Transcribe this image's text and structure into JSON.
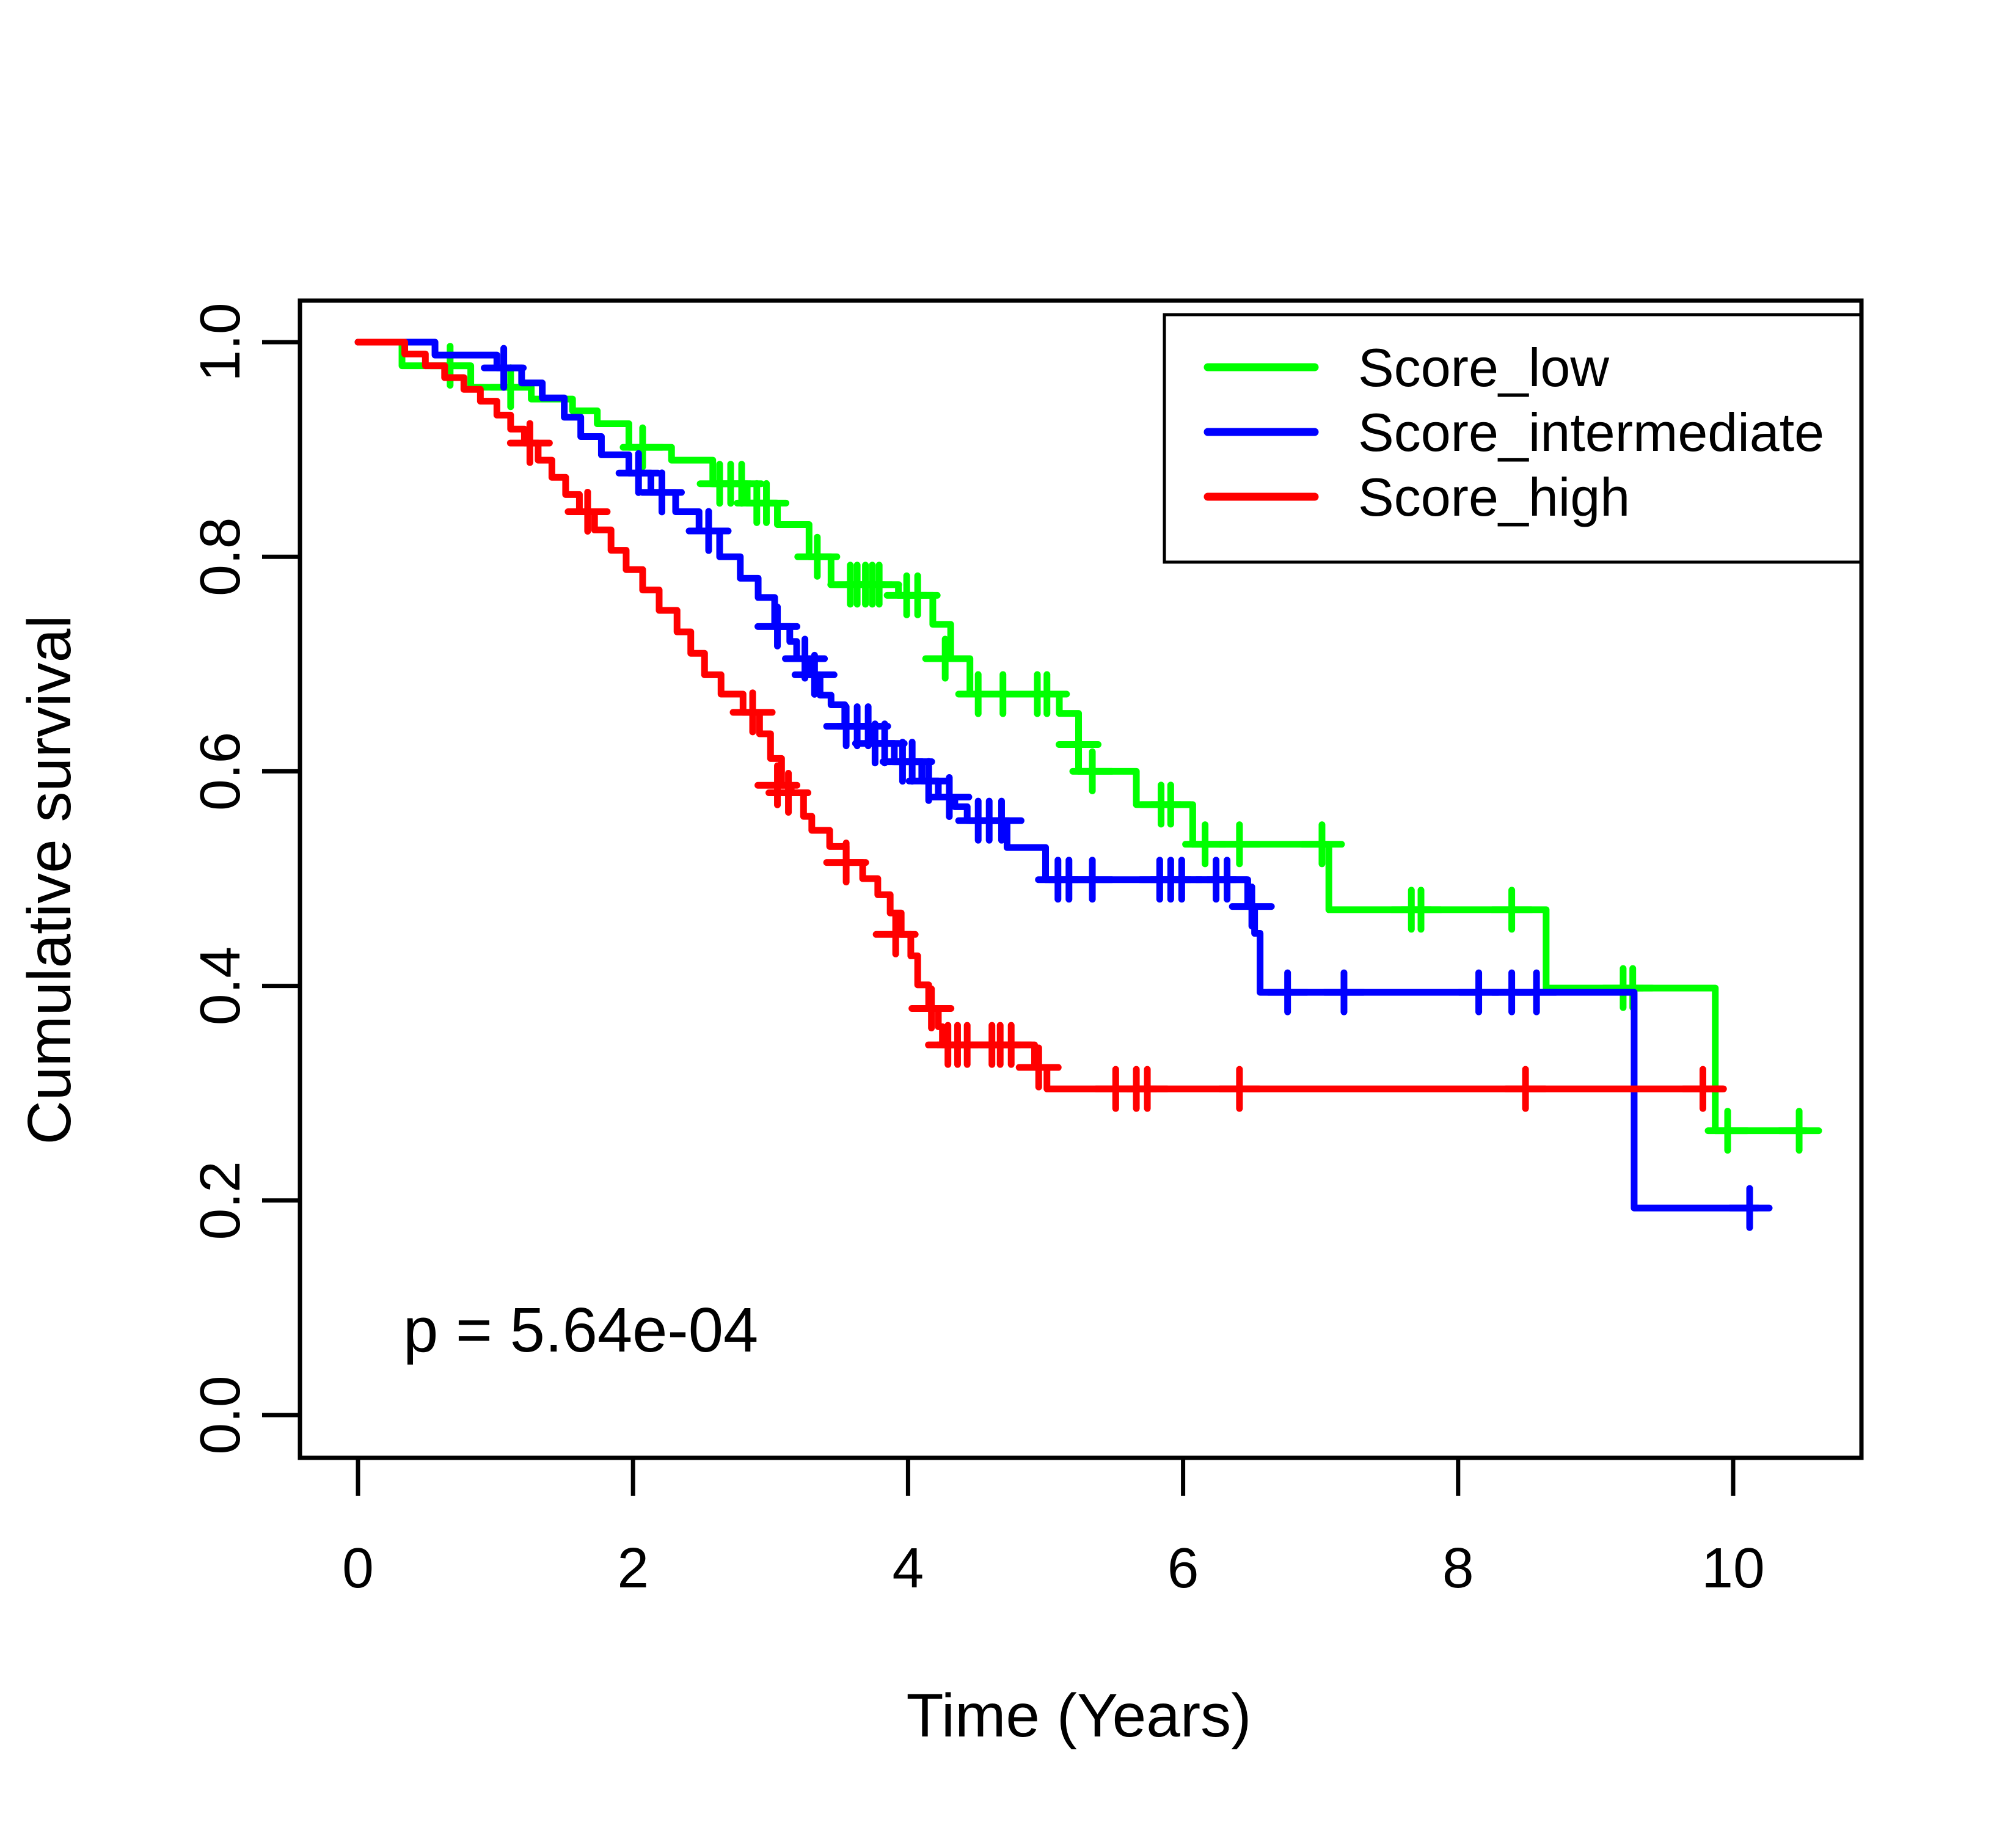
{
  "chart_data": {
    "type": "line",
    "subtype": "kaplan-meier-step-survival",
    "title": "",
    "xlabel": "Time (Years)",
    "ylabel": "Cumulative survival",
    "xlim": [
      -0.4,
      10.9
    ],
    "ylim": [
      -0.03,
      1.04
    ],
    "grid": false,
    "background_color": "#FFFFFF",
    "axis_color": "#000000",
    "x_axis": {
      "ticks": [
        0,
        2,
        4,
        6,
        8,
        10
      ],
      "tick_labels": [
        "0",
        "2",
        "4",
        "6",
        "8",
        "10"
      ]
    },
    "y_axis": {
      "ticks": [
        0.0,
        0.2,
        0.4,
        0.6,
        0.8,
        1.0
      ],
      "tick_labels": [
        "0.0",
        "0.2",
        "0.4",
        "0.6",
        "0.8",
        "1.0"
      ]
    },
    "annotations": {
      "p_value": "p = 5.64e-04"
    },
    "legend": {
      "position": "top-right",
      "items": [
        {
          "label": "Score_low",
          "color": "#00FF00"
        },
        {
          "label": "Score_intermediate",
          "color": "#0000FF"
        },
        {
          "label": "Score_high",
          "color": "#FF0000"
        }
      ]
    },
    "series": [
      {
        "name": "Score_low",
        "color": "#00FF00",
        "end_time": 10.53,
        "steps": [
          [
            0,
            1.0
          ],
          [
            0.32,
            0.978
          ],
          [
            0.82,
            0.958
          ],
          [
            1.26,
            0.947
          ],
          [
            1.56,
            0.936
          ],
          [
            1.74,
            0.924
          ],
          [
            1.97,
            0.902
          ],
          [
            2.28,
            0.89
          ],
          [
            2.58,
            0.868
          ],
          [
            2.83,
            0.85
          ],
          [
            3.05,
            0.83
          ],
          [
            3.28,
            0.8
          ],
          [
            3.44,
            0.774
          ],
          [
            3.93,
            0.764
          ],
          [
            4.18,
            0.737
          ],
          [
            4.31,
            0.705
          ],
          [
            4.45,
            0.672
          ],
          [
            5.1,
            0.654
          ],
          [
            5.24,
            0.6
          ],
          [
            5.66,
            0.569
          ],
          [
            6.07,
            0.532
          ],
          [
            7.06,
            0.471
          ],
          [
            8.64,
            0.398
          ],
          [
            9.87,
            0.265
          ]
        ],
        "censors": [
          [
            0.67,
            0.978
          ],
          [
            1.11,
            0.958
          ],
          [
            2.07,
            0.902
          ],
          [
            2.63,
            0.868
          ],
          [
            2.71,
            0.868
          ],
          [
            2.79,
            0.868
          ],
          [
            2.9,
            0.85
          ],
          [
            2.97,
            0.85
          ],
          [
            3.34,
            0.8
          ],
          [
            3.58,
            0.774
          ],
          [
            3.63,
            0.774
          ],
          [
            3.69,
            0.774
          ],
          [
            3.74,
            0.774
          ],
          [
            3.79,
            0.774
          ],
          [
            3.99,
            0.764
          ],
          [
            4.07,
            0.764
          ],
          [
            4.27,
            0.705
          ],
          [
            4.51,
            0.672
          ],
          [
            4.69,
            0.672
          ],
          [
            4.94,
            0.672
          ],
          [
            5.01,
            0.672
          ],
          [
            5.24,
            0.625
          ],
          [
            5.34,
            0.6
          ],
          [
            5.84,
            0.569
          ],
          [
            5.91,
            0.569
          ],
          [
            6.16,
            0.532
          ],
          [
            6.41,
            0.532
          ],
          [
            7.01,
            0.532
          ],
          [
            7.66,
            0.471
          ],
          [
            7.73,
            0.471
          ],
          [
            8.39,
            0.471
          ],
          [
            9.2,
            0.398
          ],
          [
            9.27,
            0.398
          ],
          [
            9.96,
            0.265
          ],
          [
            10.48,
            0.265
          ]
        ]
      },
      {
        "name": "Score_intermediate",
        "color": "#0000FF",
        "end_time": 10.18,
        "steps": [
          [
            0,
            1.0
          ],
          [
            0.56,
            0.988
          ],
          [
            1.01,
            0.976
          ],
          [
            1.19,
            0.962
          ],
          [
            1.34,
            0.948
          ],
          [
            1.5,
            0.93
          ],
          [
            1.62,
            0.912
          ],
          [
            1.77,
            0.895
          ],
          [
            1.97,
            0.878
          ],
          [
            2.13,
            0.86
          ],
          [
            2.31,
            0.842
          ],
          [
            2.48,
            0.824
          ],
          [
            2.63,
            0.8
          ],
          [
            2.78,
            0.78
          ],
          [
            2.91,
            0.762
          ],
          [
            3.03,
            0.735
          ],
          [
            3.14,
            0.721
          ],
          [
            3.19,
            0.705
          ],
          [
            3.29,
            0.69
          ],
          [
            3.36,
            0.671
          ],
          [
            3.44,
            0.662
          ],
          [
            3.54,
            0.642
          ],
          [
            3.72,
            0.626
          ],
          [
            3.9,
            0.609
          ],
          [
            4.1,
            0.591
          ],
          [
            4.22,
            0.576
          ],
          [
            4.34,
            0.567
          ],
          [
            4.43,
            0.554
          ],
          [
            4.72,
            0.529
          ],
          [
            5.0,
            0.499
          ],
          [
            6.47,
            0.474
          ],
          [
            6.52,
            0.449
          ],
          [
            6.56,
            0.394
          ],
          [
            9.28,
            0.193
          ]
        ],
        "censors": [
          [
            1.06,
            0.976
          ],
          [
            2.04,
            0.878
          ],
          [
            2.21,
            0.86
          ],
          [
            2.55,
            0.824
          ],
          [
            3.05,
            0.735
          ],
          [
            3.25,
            0.705
          ],
          [
            3.32,
            0.69
          ],
          [
            3.55,
            0.642
          ],
          [
            3.63,
            0.642
          ],
          [
            3.71,
            0.642
          ],
          [
            3.76,
            0.626
          ],
          [
            3.83,
            0.626
          ],
          [
            3.96,
            0.609
          ],
          [
            4.03,
            0.609
          ],
          [
            4.15,
            0.591
          ],
          [
            4.3,
            0.576
          ],
          [
            4.51,
            0.554
          ],
          [
            4.59,
            0.554
          ],
          [
            4.68,
            0.554
          ],
          [
            5.09,
            0.499
          ],
          [
            5.17,
            0.499
          ],
          [
            5.34,
            0.499
          ],
          [
            5.83,
            0.499
          ],
          [
            5.91,
            0.499
          ],
          [
            5.99,
            0.499
          ],
          [
            6.24,
            0.499
          ],
          [
            6.32,
            0.499
          ],
          [
            6.5,
            0.474
          ],
          [
            6.76,
            0.394
          ],
          [
            7.17,
            0.394
          ],
          [
            8.15,
            0.394
          ],
          [
            8.39,
            0.394
          ],
          [
            8.57,
            0.394
          ],
          [
            10.12,
            0.193
          ]
        ]
      },
      {
        "name": "Score_high",
        "color": "#FF0000",
        "end_time": 9.93,
        "steps": [
          [
            0,
            1.0
          ],
          [
            0.34,
            0.989
          ],
          [
            0.49,
            0.978
          ],
          [
            0.63,
            0.967
          ],
          [
            0.77,
            0.956
          ],
          [
            0.89,
            0.945
          ],
          [
            1.01,
            0.932
          ],
          [
            1.11,
            0.919
          ],
          [
            1.21,
            0.906
          ],
          [
            1.31,
            0.89
          ],
          [
            1.41,
            0.874
          ],
          [
            1.51,
            0.858
          ],
          [
            1.61,
            0.842
          ],
          [
            1.72,
            0.825
          ],
          [
            1.84,
            0.806
          ],
          [
            1.95,
            0.788
          ],
          [
            2.07,
            0.769
          ],
          [
            2.19,
            0.75
          ],
          [
            2.32,
            0.73
          ],
          [
            2.42,
            0.71
          ],
          [
            2.52,
            0.69
          ],
          [
            2.64,
            0.672
          ],
          [
            2.8,
            0.655
          ],
          [
            2.92,
            0.635
          ],
          [
            3.0,
            0.612
          ],
          [
            3.08,
            0.587
          ],
          [
            3.15,
            0.58
          ],
          [
            3.24,
            0.558
          ],
          [
            3.3,
            0.545
          ],
          [
            3.43,
            0.53
          ],
          [
            3.55,
            0.515
          ],
          [
            3.67,
            0.5
          ],
          [
            3.78,
            0.485
          ],
          [
            3.87,
            0.468
          ],
          [
            3.95,
            0.448
          ],
          [
            4.02,
            0.428
          ],
          [
            4.07,
            0.401
          ],
          [
            4.15,
            0.379
          ],
          [
            4.22,
            0.362
          ],
          [
            4.25,
            0.345
          ],
          [
            4.92,
            0.324
          ],
          [
            5.01,
            0.304
          ]
        ],
        "censors": [
          [
            1.25,
            0.906
          ],
          [
            1.67,
            0.842
          ],
          [
            2.87,
            0.655
          ],
          [
            3.05,
            0.587
          ],
          [
            3.13,
            0.58
          ],
          [
            3.55,
            0.515
          ],
          [
            3.91,
            0.448
          ],
          [
            4.17,
            0.379
          ],
          [
            4.29,
            0.345
          ],
          [
            4.36,
            0.345
          ],
          [
            4.43,
            0.345
          ],
          [
            4.61,
            0.345
          ],
          [
            4.67,
            0.345
          ],
          [
            4.75,
            0.345
          ],
          [
            4.95,
            0.324
          ],
          [
            5.51,
            0.304
          ],
          [
            5.66,
            0.304
          ],
          [
            5.74,
            0.304
          ],
          [
            6.41,
            0.304
          ],
          [
            8.49,
            0.304
          ],
          [
            9.78,
            0.304
          ]
        ]
      }
    ]
  }
}
